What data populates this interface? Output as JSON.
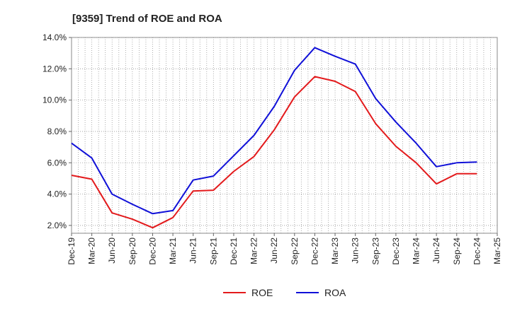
{
  "chart_data": {
    "type": "line",
    "title": "[9359]  Trend of ROE and ROA",
    "xlabel": "",
    "ylabel": "",
    "categories": [
      "Dec-19",
      "Mar-20",
      "Jun-20",
      "Sep-20",
      "Dec-20",
      "Mar-21",
      "Jun-21",
      "Sep-21",
      "Dec-21",
      "Mar-22",
      "Jun-22",
      "Sep-22",
      "Dec-22",
      "Mar-23",
      "Jun-23",
      "Sep-23",
      "Dec-23",
      "Mar-24",
      "Jun-24",
      "Sep-24",
      "Dec-24",
      "Mar-25"
    ],
    "y_ticks": [
      "2.0%",
      "4.0%",
      "6.0%",
      "8.0%",
      "10.0%",
      "12.0%",
      "14.0%"
    ],
    "ylim": [
      1.5,
      14.0
    ],
    "grid": true,
    "legend_position": "bottom-center",
    "series": [
      {
        "name": "ROE",
        "color": "#e31a1c",
        "values": [
          5.2,
          4.95,
          2.8,
          2.4,
          1.85,
          2.5,
          4.2,
          4.25,
          5.45,
          6.4,
          8.1,
          10.2,
          11.5,
          11.2,
          10.55,
          8.5,
          7.05,
          6.0,
          4.65,
          5.3,
          5.3,
          null
        ]
      },
      {
        "name": "ROA",
        "color": "#1010d8",
        "values": [
          7.25,
          6.3,
          4.0,
          3.35,
          2.75,
          2.95,
          4.9,
          5.15,
          6.45,
          7.75,
          9.6,
          11.9,
          13.35,
          12.8,
          12.3,
          10.1,
          8.6,
          7.25,
          5.75,
          6.0,
          6.05,
          null
        ]
      }
    ]
  }
}
